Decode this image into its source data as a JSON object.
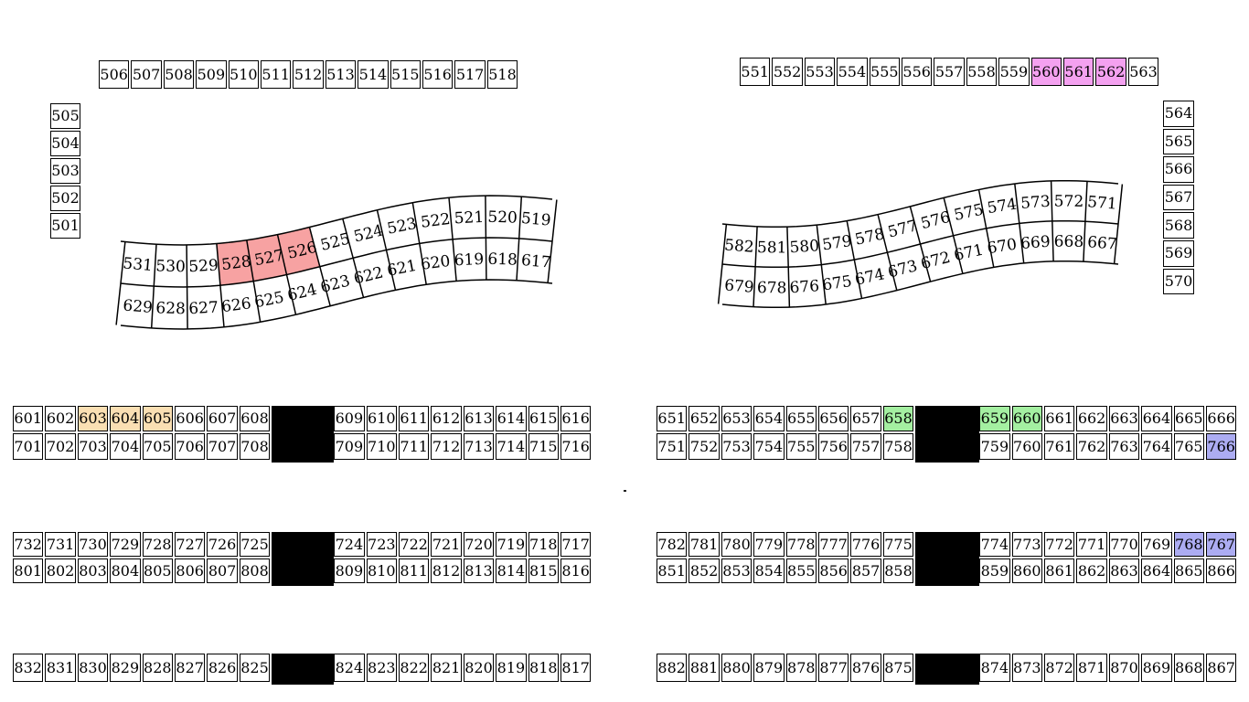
{
  "title": "seat-map",
  "colors": {
    "red": "#f7a2a2",
    "magenta": "#f4a1f0",
    "wheat": "#fadfb3",
    "green": "#a4efa1",
    "periwinkle": "#acacf2",
    "gap_black": "#000000",
    "border": "#000000",
    "background": "#ffffff"
  },
  "sections": {
    "top_left_row": {
      "cells": [
        {
          "label": "506"
        },
        {
          "label": "507"
        },
        {
          "label": "508"
        },
        {
          "label": "509"
        },
        {
          "label": "510"
        },
        {
          "label": "511"
        },
        {
          "label": "512"
        },
        {
          "label": "513"
        },
        {
          "label": "514"
        },
        {
          "label": "515"
        },
        {
          "label": "516"
        },
        {
          "label": "517"
        },
        {
          "label": "518"
        }
      ]
    },
    "top_right_row": {
      "cells": [
        {
          "label": "551"
        },
        {
          "label": "552"
        },
        {
          "label": "553"
        },
        {
          "label": "554"
        },
        {
          "label": "555"
        },
        {
          "label": "556"
        },
        {
          "label": "557"
        },
        {
          "label": "558"
        },
        {
          "label": "559"
        },
        {
          "label": "560",
          "fill": "magenta"
        },
        {
          "label": "561",
          "fill": "magenta"
        },
        {
          "label": "562",
          "fill": "magenta"
        },
        {
          "label": "563"
        }
      ]
    },
    "left_column": {
      "cells": [
        {
          "label": "505"
        },
        {
          "label": "504"
        },
        {
          "label": "503"
        },
        {
          "label": "502"
        },
        {
          "label": "501"
        }
      ]
    },
    "right_column": {
      "cells": [
        {
          "label": "564"
        },
        {
          "label": "565"
        },
        {
          "label": "566"
        },
        {
          "label": "567"
        },
        {
          "label": "568"
        },
        {
          "label": "569"
        },
        {
          "label": "570"
        }
      ]
    },
    "mid_left_r1": {
      "cells": [
        {
          "label": "601"
        },
        {
          "label": "602"
        },
        {
          "label": "603",
          "fill": "wheat"
        },
        {
          "label": "604",
          "fill": "wheat"
        },
        {
          "label": "605",
          "fill": "wheat"
        },
        {
          "label": "606"
        },
        {
          "label": "607"
        },
        {
          "label": "608"
        },
        {
          "gap": true
        },
        {
          "label": "609"
        },
        {
          "label": "610"
        },
        {
          "label": "611"
        },
        {
          "label": "612"
        },
        {
          "label": "613"
        },
        {
          "label": "614"
        },
        {
          "label": "615"
        },
        {
          "label": "616"
        }
      ]
    },
    "mid_left_r2": {
      "cells": [
        {
          "label": "701"
        },
        {
          "label": "702"
        },
        {
          "label": "703"
        },
        {
          "label": "704"
        },
        {
          "label": "705"
        },
        {
          "label": "706"
        },
        {
          "label": "707"
        },
        {
          "label": "708"
        },
        {
          "gap": true
        },
        {
          "label": "709"
        },
        {
          "label": "710"
        },
        {
          "label": "711"
        },
        {
          "label": "712"
        },
        {
          "label": "713"
        },
        {
          "label": "714"
        },
        {
          "label": "715"
        },
        {
          "label": "716"
        }
      ]
    },
    "mid_right_r1": {
      "cells": [
        {
          "label": "651"
        },
        {
          "label": "652"
        },
        {
          "label": "653"
        },
        {
          "label": "654"
        },
        {
          "label": "655"
        },
        {
          "label": "656"
        },
        {
          "label": "657"
        },
        {
          "label": "658",
          "fill": "green"
        },
        {
          "gap": true
        },
        {
          "label": "659",
          "fill": "green"
        },
        {
          "label": "660",
          "fill": "green"
        },
        {
          "label": "661"
        },
        {
          "label": "662"
        },
        {
          "label": "663"
        },
        {
          "label": "664"
        },
        {
          "label": "665"
        },
        {
          "label": "666"
        }
      ]
    },
    "mid_right_r2": {
      "cells": [
        {
          "label": "751"
        },
        {
          "label": "752"
        },
        {
          "label": "753"
        },
        {
          "label": "754"
        },
        {
          "label": "755"
        },
        {
          "label": "756"
        },
        {
          "label": "757"
        },
        {
          "label": "758"
        },
        {
          "gap": true
        },
        {
          "label": "759"
        },
        {
          "label": "760"
        },
        {
          "label": "761"
        },
        {
          "label": "762"
        },
        {
          "label": "763"
        },
        {
          "label": "764"
        },
        {
          "label": "765"
        },
        {
          "label": "766",
          "fill": "periwinkle"
        }
      ]
    },
    "low_left_r1": {
      "cells": [
        {
          "label": "732"
        },
        {
          "label": "731"
        },
        {
          "label": "730"
        },
        {
          "label": "729"
        },
        {
          "label": "728"
        },
        {
          "label": "727"
        },
        {
          "label": "726"
        },
        {
          "label": "725"
        },
        {
          "gap": true
        },
        {
          "label": "724"
        },
        {
          "label": "723"
        },
        {
          "label": "722"
        },
        {
          "label": "721"
        },
        {
          "label": "720"
        },
        {
          "label": "719"
        },
        {
          "label": "718"
        },
        {
          "label": "717"
        }
      ]
    },
    "low_left_r2": {
      "cells": [
        {
          "label": "801"
        },
        {
          "label": "802"
        },
        {
          "label": "803"
        },
        {
          "label": "804"
        },
        {
          "label": "805"
        },
        {
          "label": "806"
        },
        {
          "label": "807"
        },
        {
          "label": "808"
        },
        {
          "gap": true
        },
        {
          "label": "809"
        },
        {
          "label": "810"
        },
        {
          "label": "811"
        },
        {
          "label": "812"
        },
        {
          "label": "813"
        },
        {
          "label": "814"
        },
        {
          "label": "815"
        },
        {
          "label": "816"
        }
      ]
    },
    "low_right_r1": {
      "cells": [
        {
          "label": "782"
        },
        {
          "label": "781"
        },
        {
          "label": "780"
        },
        {
          "label": "779"
        },
        {
          "label": "778"
        },
        {
          "label": "777"
        },
        {
          "label": "776"
        },
        {
          "label": "775"
        },
        {
          "gap": true
        },
        {
          "label": "774"
        },
        {
          "label": "773"
        },
        {
          "label": "772"
        },
        {
          "label": "771"
        },
        {
          "label": "770"
        },
        {
          "label": "769"
        },
        {
          "label": "768",
          "fill": "periwinkle"
        },
        {
          "label": "767",
          "fill": "periwinkle"
        }
      ]
    },
    "low_right_r2": {
      "cells": [
        {
          "label": "851"
        },
        {
          "label": "852"
        },
        {
          "label": "853"
        },
        {
          "label": "854"
        },
        {
          "label": "855"
        },
        {
          "label": "856"
        },
        {
          "label": "857"
        },
        {
          "label": "858"
        },
        {
          "gap": true
        },
        {
          "label": "859"
        },
        {
          "label": "860"
        },
        {
          "label": "861"
        },
        {
          "label": "862"
        },
        {
          "label": "863"
        },
        {
          "label": "864"
        },
        {
          "label": "865"
        },
        {
          "label": "866"
        }
      ]
    },
    "bottom_left_row": {
      "cells": [
        {
          "label": "832"
        },
        {
          "label": "831"
        },
        {
          "label": "830"
        },
        {
          "label": "829"
        },
        {
          "label": "828"
        },
        {
          "label": "827"
        },
        {
          "label": "826"
        },
        {
          "label": "825"
        },
        {
          "gap": true
        },
        {
          "label": "824"
        },
        {
          "label": "823"
        },
        {
          "label": "822"
        },
        {
          "label": "821"
        },
        {
          "label": "820"
        },
        {
          "label": "819"
        },
        {
          "label": "818"
        },
        {
          "label": "817"
        }
      ]
    },
    "bottom_right_row": {
      "cells": [
        {
          "label": "882"
        },
        {
          "label": "881"
        },
        {
          "label": "880"
        },
        {
          "label": "879"
        },
        {
          "label": "878"
        },
        {
          "label": "877"
        },
        {
          "label": "876"
        },
        {
          "label": "875"
        },
        {
          "gap": true
        },
        {
          "label": "874"
        },
        {
          "label": "873"
        },
        {
          "label": "872"
        },
        {
          "label": "871"
        },
        {
          "label": "870"
        },
        {
          "label": "869"
        },
        {
          "label": "868"
        },
        {
          "label": "867"
        }
      ]
    }
  },
  "bands": {
    "left_band": {
      "top": [
        {
          "label": "531"
        },
        {
          "label": "530"
        },
        {
          "label": "529"
        },
        {
          "label": "528",
          "fill": "red"
        },
        {
          "label": "527",
          "fill": "red"
        },
        {
          "label": "526",
          "fill": "red"
        },
        {
          "label": "525"
        },
        {
          "label": "524"
        },
        {
          "label": "523"
        },
        {
          "label": "522"
        },
        {
          "label": "521"
        },
        {
          "label": "520"
        },
        {
          "label": "519"
        }
      ],
      "bottom": [
        {
          "label": "629"
        },
        {
          "label": "628"
        },
        {
          "label": "627"
        },
        {
          "label": "626"
        },
        {
          "label": "625"
        },
        {
          "label": "624"
        },
        {
          "label": "623"
        },
        {
          "label": "622"
        },
        {
          "label": "621"
        },
        {
          "label": "620"
        },
        {
          "label": "619"
        },
        {
          "label": "618"
        },
        {
          "label": "617"
        }
      ]
    },
    "right_band": {
      "top": [
        {
          "label": "582"
        },
        {
          "label": "581"
        },
        {
          "label": "580"
        },
        {
          "label": "579"
        },
        {
          "label": "578"
        },
        {
          "label": "577"
        },
        {
          "label": "576"
        },
        {
          "label": "575"
        },
        {
          "label": "574"
        },
        {
          "label": "573"
        },
        {
          "label": "572"
        },
        {
          "label": "571"
        }
      ],
      "bottom": [
        {
          "label": "679"
        },
        {
          "label": "678"
        },
        {
          "label": "676"
        },
        {
          "label": "675"
        },
        {
          "label": "674"
        },
        {
          "label": "673"
        },
        {
          "label": "672"
        },
        {
          "label": "671"
        },
        {
          "label": "670"
        },
        {
          "label": "669"
        },
        {
          "label": "668"
        },
        {
          "label": "667"
        }
      ]
    }
  }
}
